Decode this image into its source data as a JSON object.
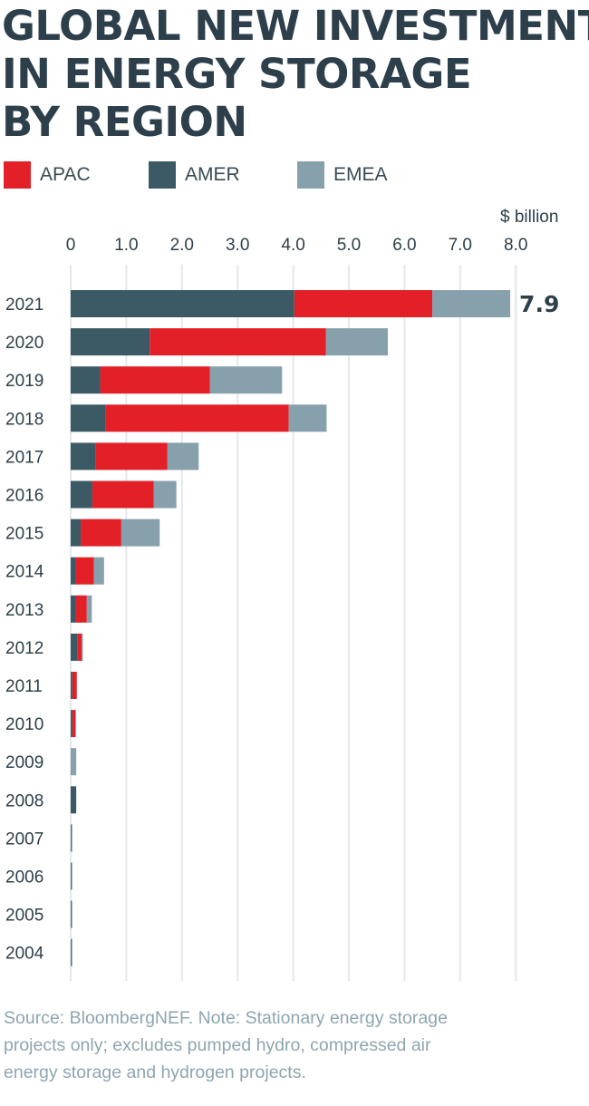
{
  "title_lines": [
    "GLOBAL NEW INVESTMENT",
    "IN ENERGY STORAGE",
    "BY REGION"
  ],
  "colors": {
    "APAC": "#e32028",
    "AMER": "#3c5a66",
    "EMEA": "#86a1ac",
    "grid": "#e3e8eb",
    "text": "#2d3f4a"
  },
  "chart_data": {
    "type": "bar",
    "orientation": "horizontal",
    "stacked": true,
    "title": "GLOBAL NEW INVESTMENT IN ENERGY STORAGE BY REGION",
    "unit_label": "$ billion",
    "xlim": [
      0,
      8
    ],
    "ticks": [
      0,
      1,
      2,
      3,
      4,
      5,
      6,
      7,
      8
    ],
    "tick_labels": [
      "0",
      "1.0",
      "2.0",
      "3.0",
      "4.0",
      "5.0",
      "6.0",
      "7.0",
      "8.0"
    ],
    "legend": [
      "APAC",
      "AMER",
      "EMEA"
    ],
    "categories": [
      "2021",
      "2020",
      "2019",
      "2018",
      "2017",
      "2016",
      "2015",
      "2014",
      "2013",
      "2012",
      "2011",
      "2010",
      "2009",
      "2008",
      "2007",
      "2006",
      "2005",
      "2004"
    ],
    "series": [
      {
        "name": "AMER",
        "values": [
          4.02,
          1.42,
          0.53,
          0.62,
          0.45,
          0.39,
          0.18,
          0.09,
          0.09,
          0.12,
          0.03,
          0.03,
          0.0,
          0.1,
          0.01,
          0.01,
          0.01,
          0.01
        ]
      },
      {
        "name": "APAC",
        "values": [
          2.48,
          3.17,
          1.97,
          3.3,
          1.29,
          1.1,
          0.73,
          0.33,
          0.2,
          0.08,
          0.08,
          0.06,
          0.0,
          0.0,
          0.0,
          0.0,
          0.0,
          0.0
        ]
      },
      {
        "name": "EMEA",
        "values": [
          1.4,
          1.11,
          1.3,
          0.68,
          0.56,
          0.41,
          0.69,
          0.18,
          0.09,
          0.02,
          0.0,
          0.0,
          0.1,
          0.0,
          0.01,
          0.01,
          0.01,
          0.01
        ]
      }
    ],
    "annotation": {
      "category": "2021",
      "text": "7.9"
    }
  },
  "footnote_lines": [
    "Source: BloombergNEF. Note: Stationary energy storage",
    "projects only; excludes pumped hydro, compressed air",
    "energy storage and hydrogen projects."
  ]
}
